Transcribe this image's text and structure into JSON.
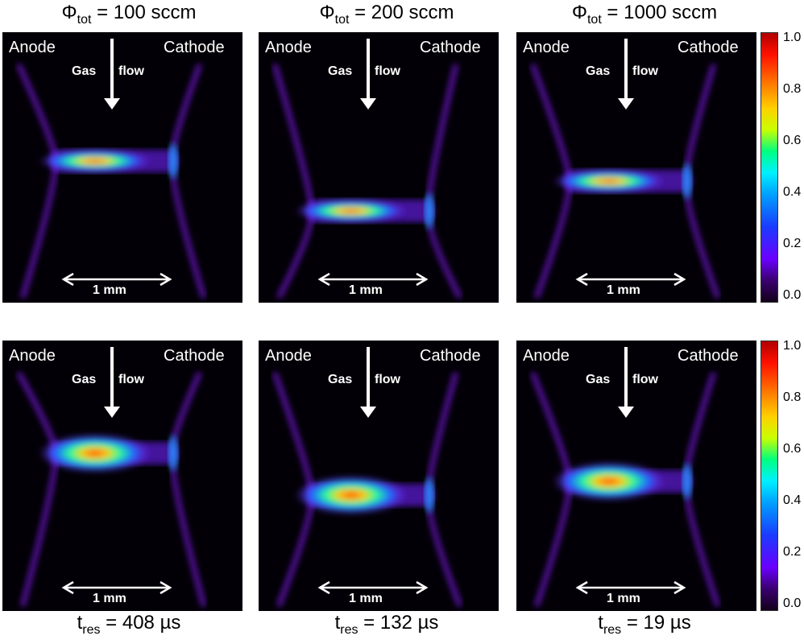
{
  "columns": [
    {
      "phi_symbol": "Φ",
      "phi_sub": "tot",
      "flow_value": " = 100 sccm",
      "tres_symbol": "t",
      "tres_sub": "res",
      "tres_value": " = 408 µs"
    },
    {
      "phi_symbol": "Φ",
      "phi_sub": "tot",
      "flow_value": " = 200 sccm",
      "tres_symbol": "t",
      "tres_sub": "res",
      "tres_value": " = 132 µs"
    },
    {
      "phi_symbol": "Φ",
      "phi_sub": "tot",
      "flow_value": " = 1000 sccm",
      "tres_symbol": "t",
      "tres_sub": "res",
      "tres_value": " = 19 µs"
    }
  ],
  "panel_labels": {
    "anode": "Anode",
    "cathode": "Cathode",
    "gas": "Gas",
    "flow": "flow",
    "scale": "1 mm"
  },
  "colorbar": {
    "ticks": [
      "1.0",
      "0.8",
      "0.6",
      "0.4",
      "0.2",
      "0.0"
    ]
  },
  "colors": {
    "background": "#020006",
    "glow_purple": "#8a1cff",
    "glow_blue": "#1a6cff",
    "glow_green": "#2cff9a",
    "glow_red": "#ff2a10",
    "text": "#ffffff"
  }
}
